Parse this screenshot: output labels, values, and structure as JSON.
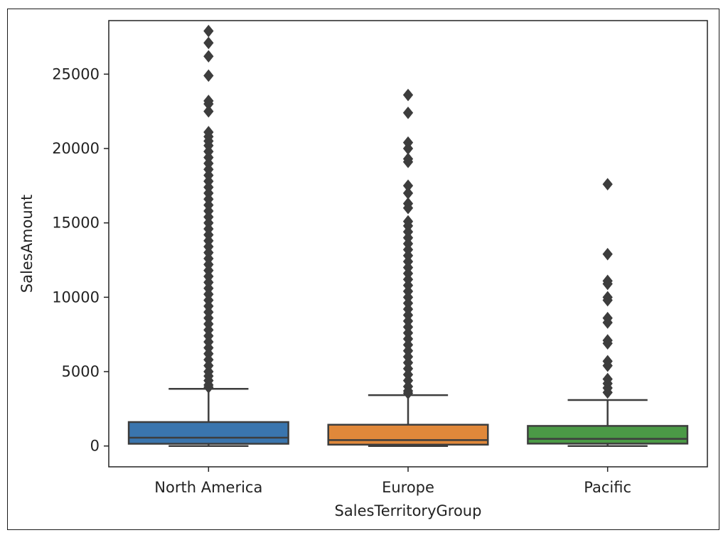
{
  "chart_data": {
    "type": "box",
    "xlabel": "SalesTerritoryGroup",
    "ylabel": "SalesAmount",
    "ylim": [
      -1400,
      28600
    ],
    "yticks": [
      0,
      5000,
      10000,
      15000,
      20000,
      25000
    ],
    "ytick_labels": [
      "0",
      "5000",
      "10000",
      "15000",
      "20000",
      "25000"
    ],
    "grid": false,
    "legend": "none",
    "categories": [
      "North America",
      "Europe",
      "Pacific"
    ],
    "series": [
      {
        "category": "North America",
        "color": "#3a75ae",
        "whisker_low": 0,
        "q1": 150,
        "median": 560,
        "q3": 1610,
        "whisker_high": 3840,
        "outliers": [
          27900,
          27100,
          26200,
          24900,
          23200,
          23000,
          22500,
          21100,
          20800,
          20500,
          20200,
          19800,
          19400,
          19000,
          18600,
          18200,
          17800,
          17400,
          17000,
          16600,
          16200,
          15800,
          15400,
          15000,
          14600,
          14200,
          13800,
          13400,
          13000,
          12600,
          12200,
          11800,
          11400,
          11000,
          10600,
          10200,
          9800,
          9400,
          9000,
          8600,
          8200,
          7800,
          7400,
          7000,
          6600,
          6200,
          5800,
          5400,
          5000,
          4700,
          4400,
          4100,
          3950
        ]
      },
      {
        "category": "Europe",
        "color": "#e0883a",
        "whisker_low": 0,
        "q1": 90,
        "median": 400,
        "q3": 1430,
        "whisker_high": 3420,
        "outliers": [
          23600,
          22400,
          20400,
          20000,
          19300,
          19100,
          17500,
          17000,
          16300,
          16000,
          15100,
          14800,
          14400,
          14000,
          13600,
          13200,
          12800,
          12400,
          12000,
          11600,
          11200,
          10800,
          10400,
          10000,
          9600,
          9200,
          8800,
          8400,
          8000,
          7600,
          7200,
          6800,
          6400,
          6000,
          5600,
          5200,
          4800,
          4400,
          4000,
          3700,
          3550
        ]
      },
      {
        "category": "Pacific",
        "color": "#4b9a46",
        "whisker_low": 0,
        "q1": 160,
        "median": 480,
        "q3": 1350,
        "whisker_high": 3090,
        "outliers": [
          17600,
          12900,
          11100,
          10900,
          10000,
          9800,
          8600,
          8300,
          7100,
          6900,
          5700,
          5400,
          4500,
          4200,
          3900,
          3600
        ]
      }
    ]
  }
}
